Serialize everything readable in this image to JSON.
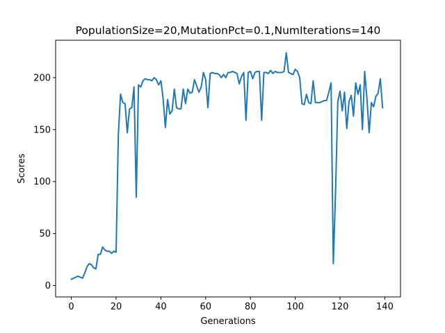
{
  "chart_data": {
    "type": "line",
    "title": "PopulationSize=20,MutationPct=0.1,NumIterations=140",
    "xlabel": "Generations",
    "ylabel": "Scores",
    "xlim": [
      -7,
      147
    ],
    "ylim": [
      -11,
      236
    ],
    "xticks": [
      0,
      20,
      40,
      60,
      80,
      100,
      120,
      140
    ],
    "yticks": [
      0,
      50,
      100,
      150,
      200
    ],
    "grid": false,
    "legend": "none",
    "line_color": "#1f77b4",
    "series": [
      {
        "values": [
          6,
          7,
          8,
          9,
          8,
          7,
          12,
          18,
          21,
          20,
          17,
          16,
          30,
          30,
          37,
          34,
          33,
          33,
          31,
          33,
          32,
          145,
          184,
          176,
          175,
          147,
          170,
          171,
          191,
          85,
          193,
          191,
          197,
          199,
          198,
          198,
          197,
          200,
          198,
          193,
          197,
          180,
          152,
          179,
          165,
          168,
          189,
          171,
          170,
          170,
          189,
          175,
          189,
          185,
          186,
          198,
          192,
          186,
          191,
          205,
          198,
          171,
          204,
          205,
          204,
          204,
          203,
          200,
          203,
          200,
          205,
          205,
          206,
          205,
          204,
          194,
          201,
          205,
          159,
          205,
          206,
          199,
          205,
          206,
          206,
          159,
          205,
          205,
          204,
          207,
          204,
          206,
          205,
          205,
          205,
          206,
          224,
          205,
          204,
          203,
          208,
          206,
          200,
          175,
          174,
          184,
          176,
          175,
          197,
          176,
          176,
          176,
          177,
          178,
          178,
          186,
          195,
          21,
          90,
          177,
          187,
          168,
          186,
          151,
          177,
          183,
          163,
          195,
          184,
          193,
          150,
          206,
          180,
          147,
          176,
          172,
          182,
          185,
          199,
          171
        ]
      }
    ]
  }
}
